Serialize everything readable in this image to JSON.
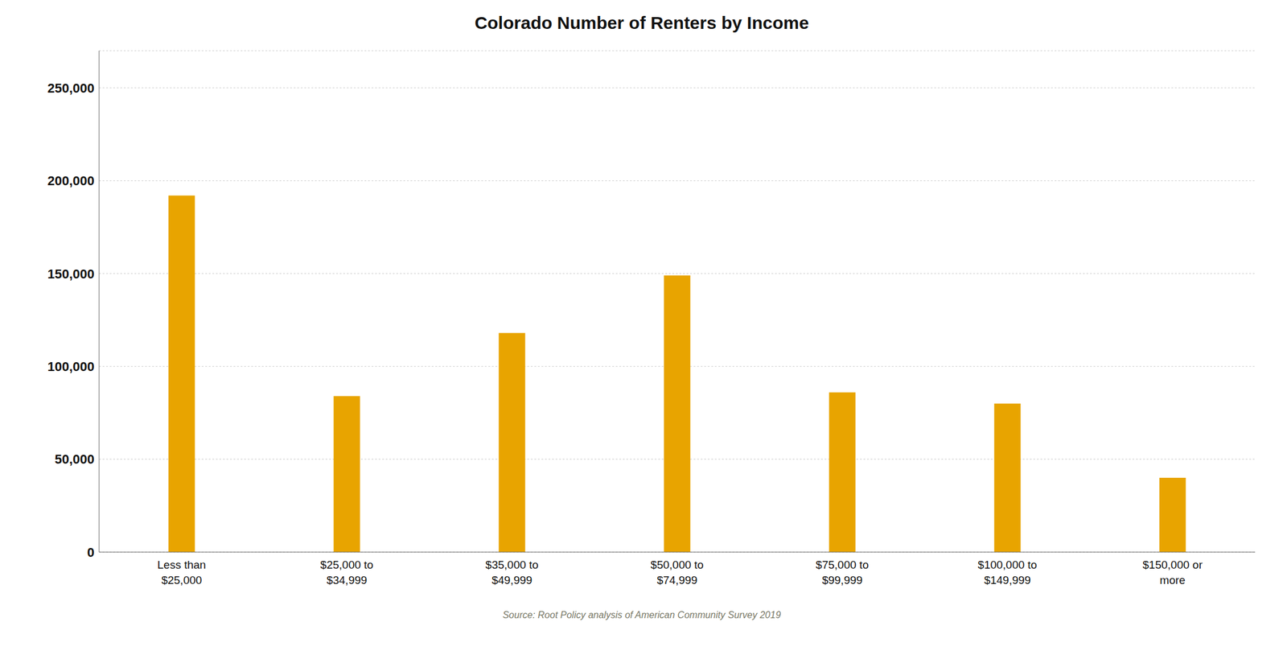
{
  "chart_data": {
    "type": "bar",
    "title": "Colorado Number of Renters by Income",
    "categories": [
      "Less than\n$25,000",
      "$25,000 to\n$34,999",
      "$35,000 to\n$49,999",
      "$50,000 to\n$74,999",
      "$75,000 to\n$99,999",
      "$100,000 to\n$149,999",
      "$150,000 or\nmore"
    ],
    "values": [
      192000,
      84000,
      118000,
      149000,
      86000,
      80000,
      40000
    ],
    "color": "#E8A400",
    "ylim": [
      0,
      270000
    ],
    "yticks": [
      0,
      {
        "value": 50000,
        "label": "50,000"
      },
      {
        "value": 100000,
        "label": "100,000"
      },
      {
        "value": 150000,
        "label": "150,000"
      },
      {
        "value": 200000,
        "label": "200,000"
      },
      {
        "value": 250000,
        "label": "250,000"
      }
    ],
    "grid": true,
    "annotations": [
      "Source: Root Policy analysis of American Community Survey 2019"
    ]
  }
}
